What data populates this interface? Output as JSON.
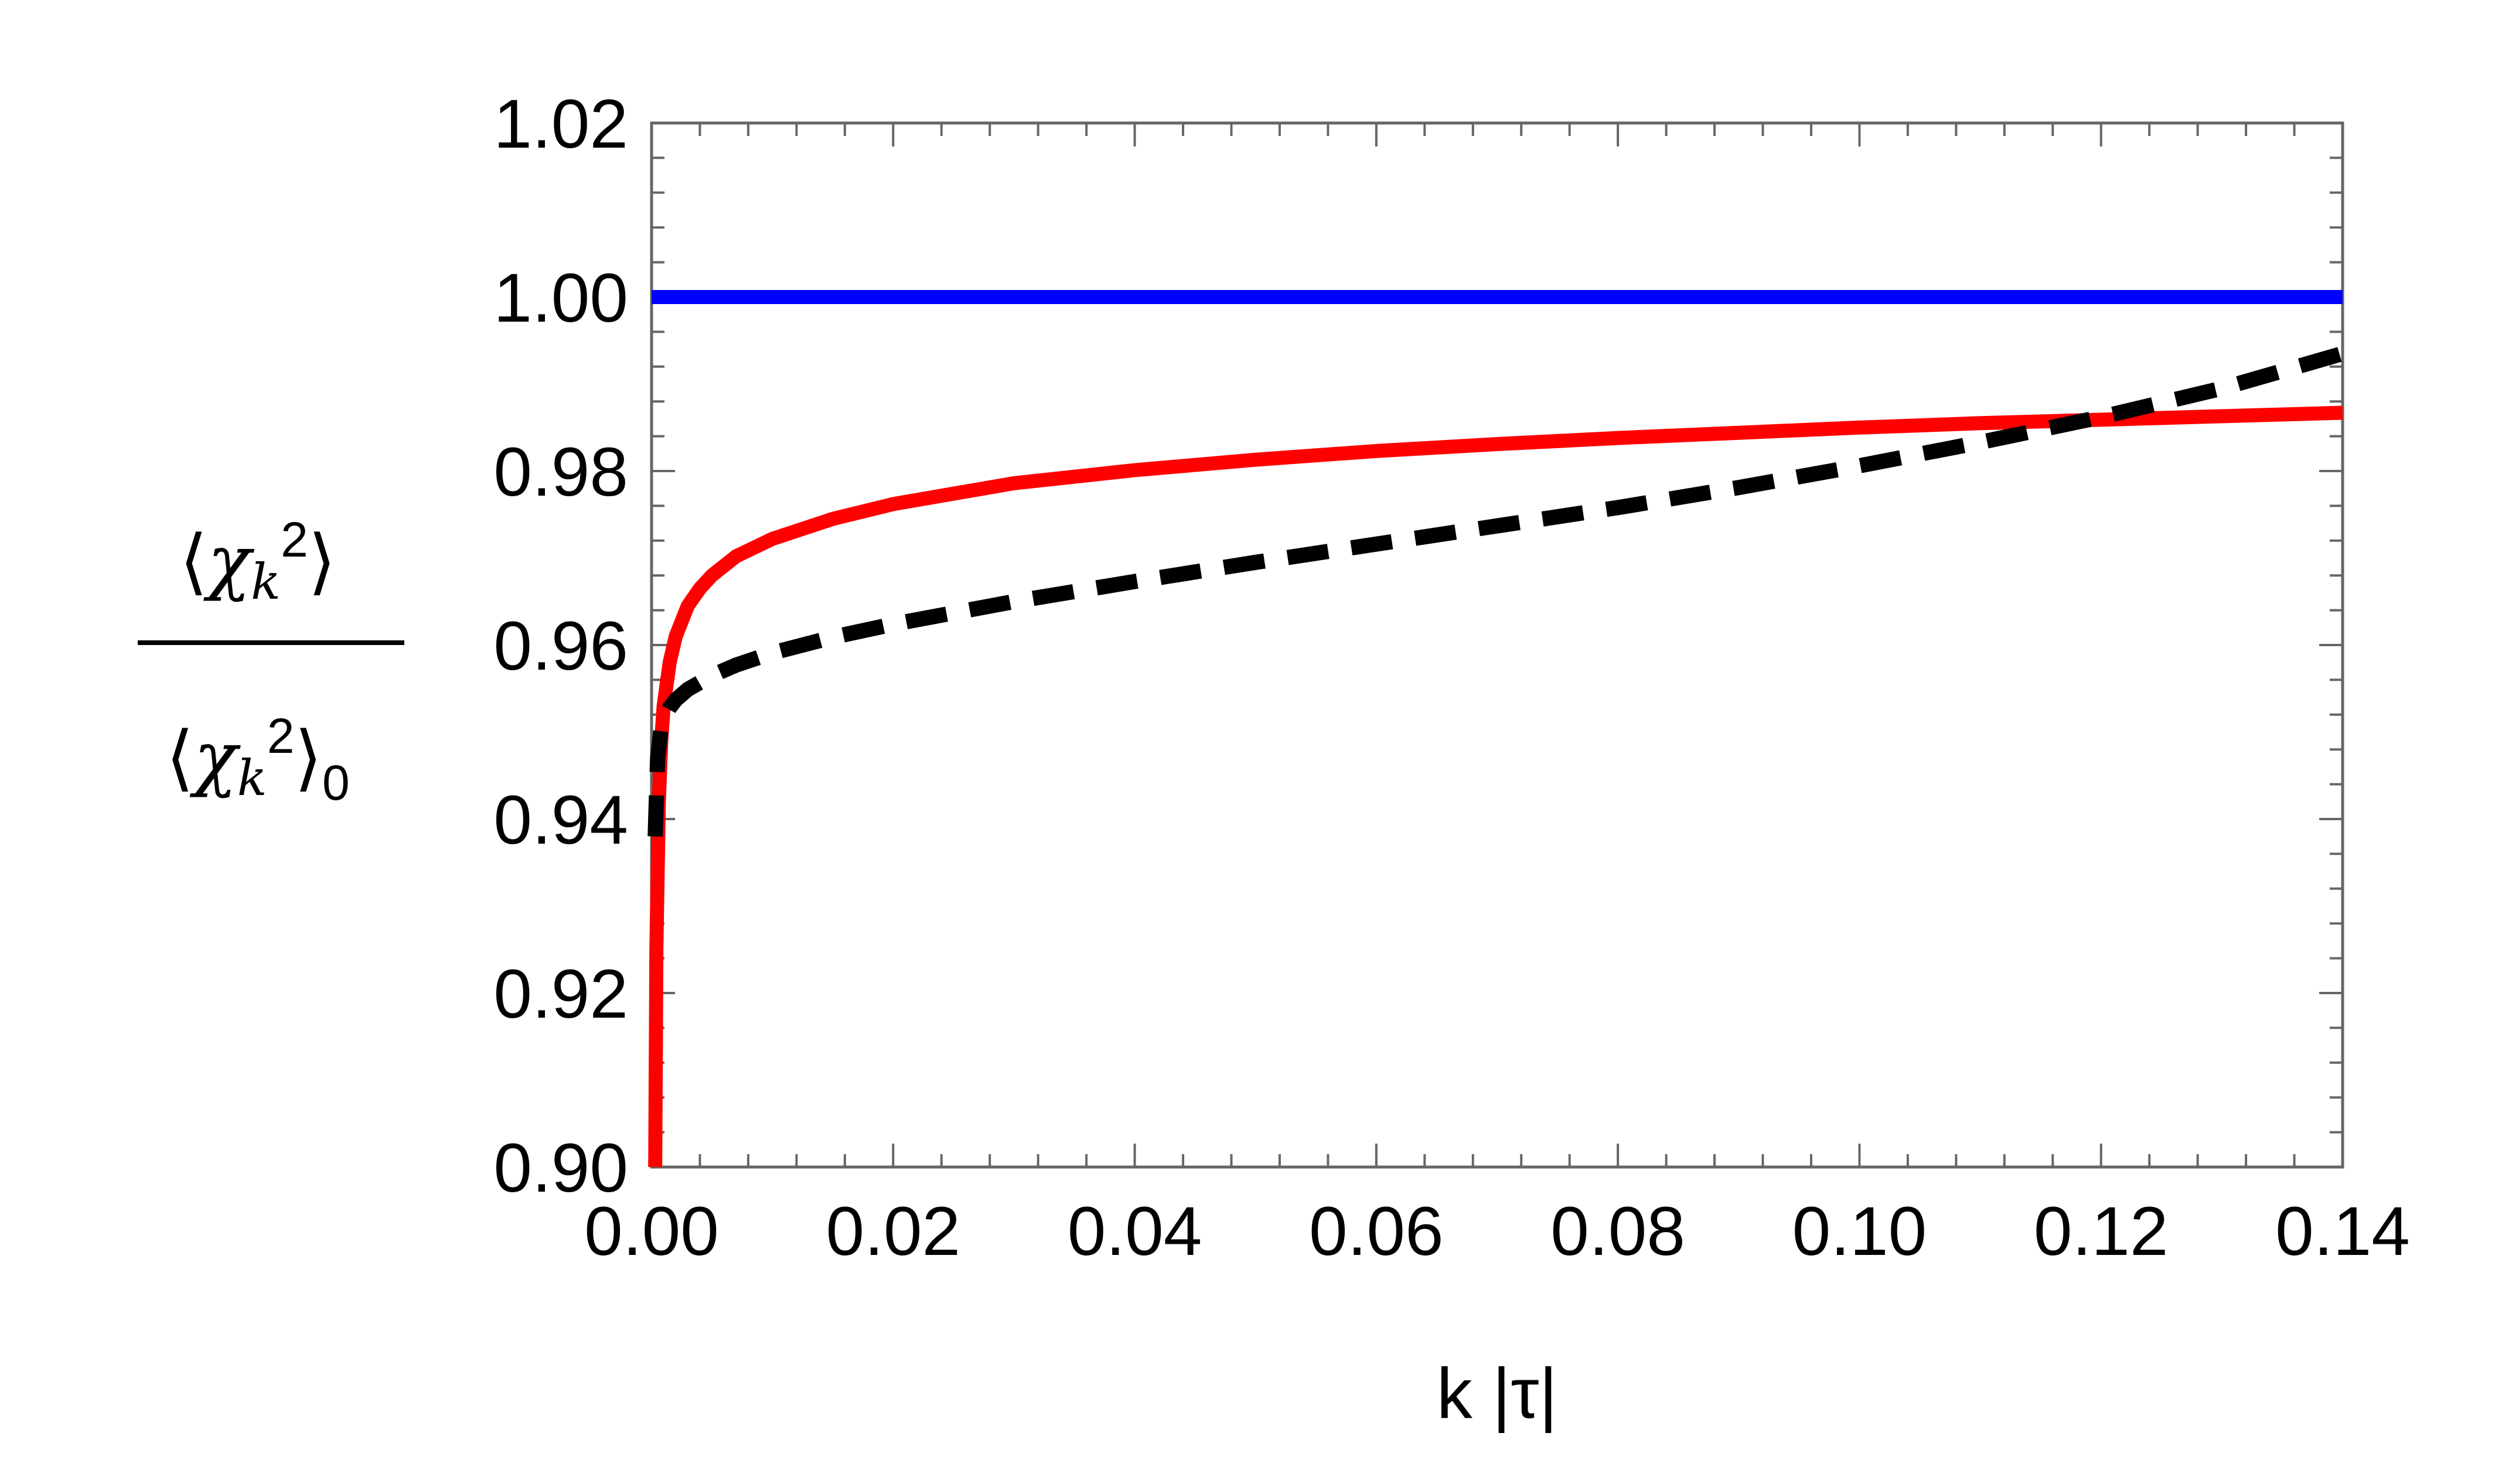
{
  "chart_data": {
    "type": "line",
    "title": "",
    "xlabel": "k |τ|",
    "ylabel": {
      "numerator": "⟨χk²⟩",
      "denominator": "⟨χk²⟩0"
    },
    "xlim": [
      0.0,
      0.14
    ],
    "ylim": [
      0.9,
      1.02
    ],
    "x_ticks": [
      "0.00",
      "0.02",
      "0.04",
      "0.06",
      "0.08",
      "0.10",
      "0.12",
      "0.14"
    ],
    "y_ticks": [
      "0.90",
      "0.92",
      "0.94",
      "0.96",
      "0.98",
      "1.00",
      "1.02"
    ],
    "grid": false,
    "legend": "none",
    "series": [
      {
        "name": "blue-constant",
        "color": "#0000ff",
        "style": "solid",
        "x": [
          0.0,
          0.02,
          0.04,
          0.06,
          0.08,
          0.1,
          0.12,
          0.14
        ],
        "y": [
          1.0,
          1.0,
          1.0,
          1.0,
          1.0,
          1.0,
          1.0,
          1.0
        ]
      },
      {
        "name": "red-solid",
        "color": "#ff0000",
        "style": "solid",
        "x": [
          0.0003,
          0.0004,
          0.0006,
          0.0008,
          0.001,
          0.0015,
          0.002,
          0.003,
          0.004,
          0.005,
          0.007,
          0.01,
          0.015,
          0.02,
          0.03,
          0.04,
          0.05,
          0.06,
          0.07,
          0.08,
          0.09,
          0.1,
          0.11,
          0.12,
          0.13,
          0.14
        ],
        "y": [
          0.9,
          0.925,
          0.942,
          0.949,
          0.953,
          0.958,
          0.961,
          0.9645,
          0.9665,
          0.968,
          0.9702,
          0.9722,
          0.9745,
          0.9762,
          0.9786,
          0.9801,
          0.9813,
          0.9823,
          0.9831,
          0.9838,
          0.9844,
          0.985,
          0.9855,
          0.9859,
          0.9863,
          0.9867
        ]
      },
      {
        "name": "black-dashed",
        "color": "#000000",
        "style": "dashed",
        "x": [
          0.0003,
          0.0005,
          0.0008,
          0.001,
          0.0015,
          0.002,
          0.003,
          0.005,
          0.007,
          0.01,
          0.015,
          0.02,
          0.03,
          0.04,
          0.05,
          0.06,
          0.07,
          0.08,
          0.09,
          0.1,
          0.11,
          0.12,
          0.13,
          0.14
        ],
        "y": [
          0.938,
          0.947,
          0.9505,
          0.9515,
          0.9528,
          0.9537,
          0.9549,
          0.9565,
          0.9577,
          0.9591,
          0.9609,
          0.9624,
          0.965,
          0.9673,
          0.9695,
          0.9716,
          0.9737,
          0.9758,
          0.9781,
          0.9806,
          0.9833,
          0.9862,
          0.9895,
          0.9935
        ]
      }
    ]
  }
}
